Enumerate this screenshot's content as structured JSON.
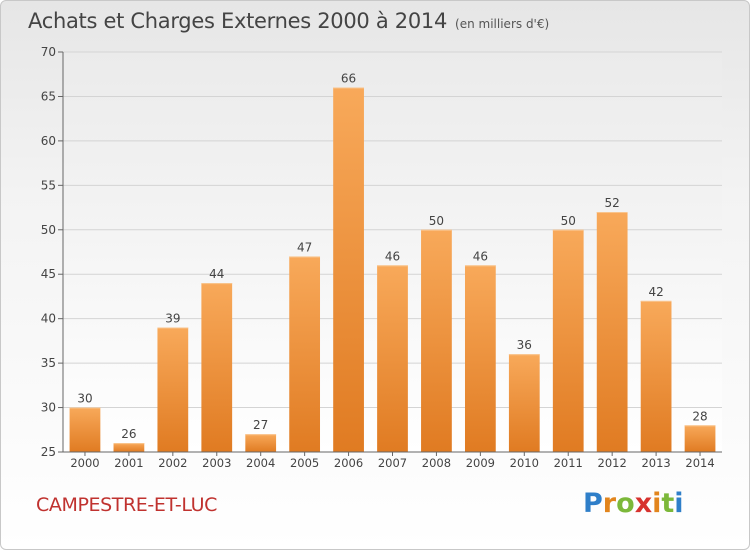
{
  "chart_data": {
    "type": "bar",
    "title": "Achats et Charges Externes 2000 à 2014",
    "subtitle": "(en milliers d'€)",
    "categories": [
      "2000",
      "2001",
      "2002",
      "2003",
      "2004",
      "2005",
      "2006",
      "2007",
      "2008",
      "2009",
      "2010",
      "2011",
      "2012",
      "2013",
      "2014"
    ],
    "values": [
      30,
      26,
      39,
      44,
      27,
      47,
      66,
      46,
      50,
      46,
      36,
      50,
      52,
      42,
      28
    ],
    "ylim": [
      25,
      70
    ],
    "yticks": [
      25,
      30,
      35,
      40,
      45,
      50,
      55,
      60,
      65,
      70
    ],
    "grid": true,
    "xlabel": "",
    "ylabel": ""
  },
  "commune": "CAMPESTRE-ET-LUC",
  "logo": {
    "text": "Proxiti",
    "letters": [
      "P",
      "r",
      "o",
      "x",
      "i",
      "t",
      "i"
    ]
  },
  "colors": {
    "bar_top": "#f8a95a",
    "bar_bottom": "#e07b22",
    "commune": "#c0322f"
  }
}
